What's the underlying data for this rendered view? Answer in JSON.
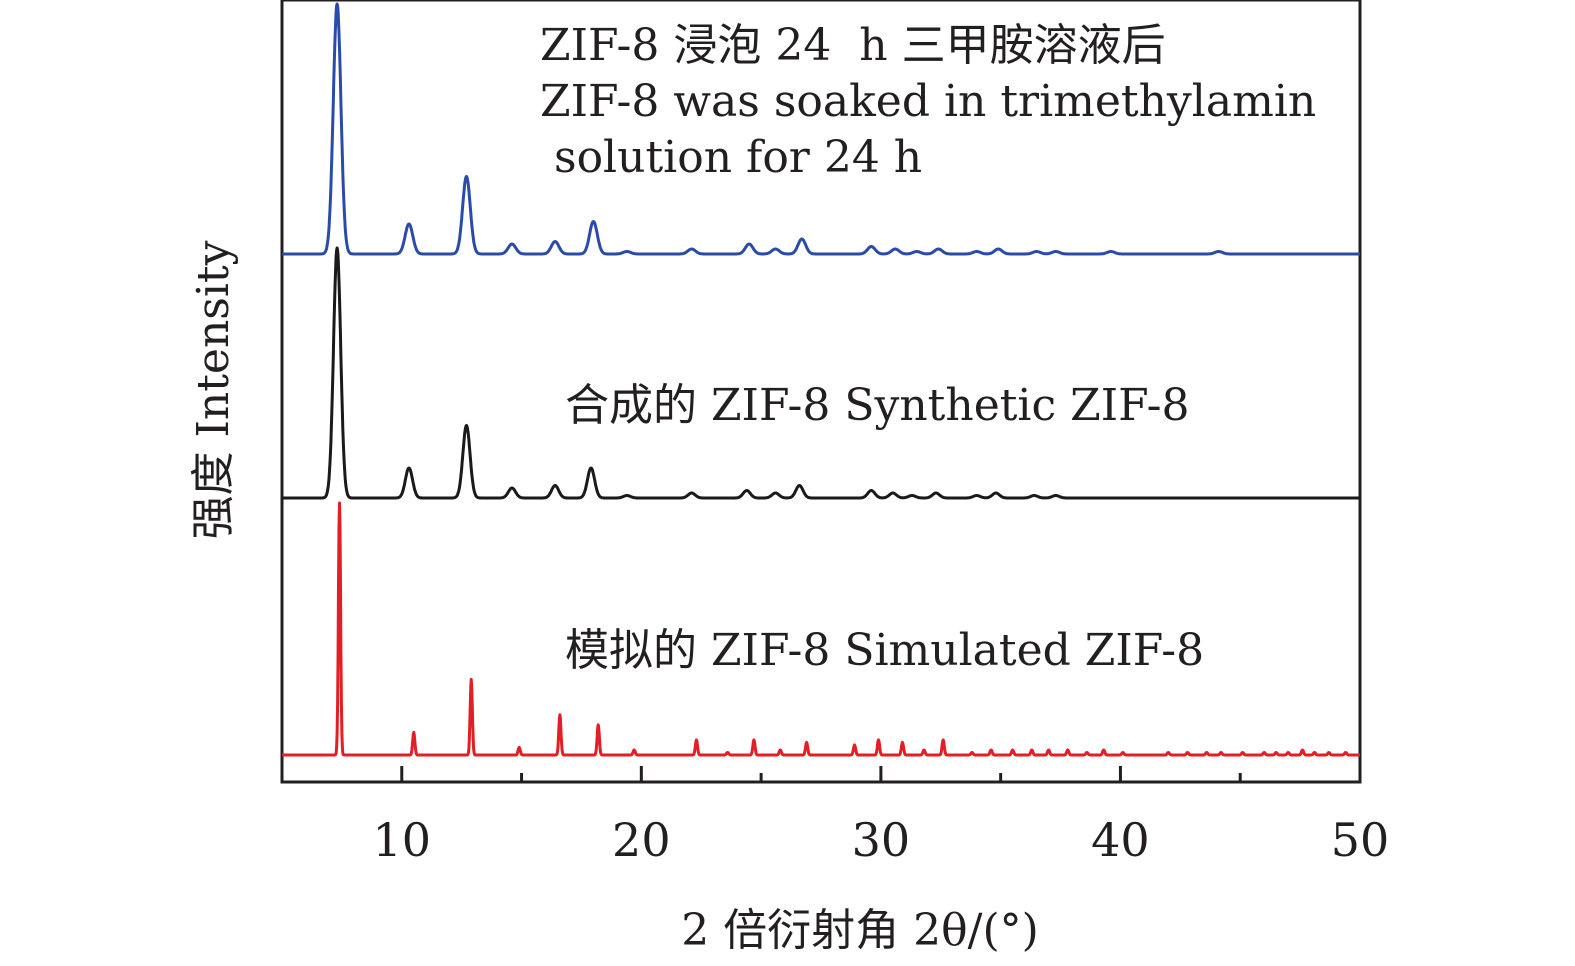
{
  "chart_data": {
    "type": "line",
    "xlabel": "2 倍衍射角 2θ/(°)",
    "ylabel": "强度 Intensity",
    "xlim": [
      5,
      50
    ],
    "xticks": [
      10,
      20,
      30,
      40,
      50
    ],
    "grid": false,
    "legend": "none",
    "y_units": "arbitrary, stacked with vertical offsets",
    "series": [
      {
        "name": "ZIF-8 浸泡 24 h 三甲胺溶液后 ZIF-8 was soaked in trimethylamin solution for 24 h",
        "label_lines": [
          "ZIF-8 浸泡 24  h 三甲胺溶液后",
          "ZIF-8 was soaked in trimethylamin",
          " solution for 24 h"
        ],
        "color": "#2b4ba8",
        "offset": 2,
        "peaks": [
          [
            7.3,
            1.0
          ],
          [
            10.3,
            0.12
          ],
          [
            12.7,
            0.31
          ],
          [
            14.6,
            0.04
          ],
          [
            16.4,
            0.05
          ],
          [
            18.0,
            0.13
          ],
          [
            19.4,
            0.01
          ],
          [
            22.1,
            0.02
          ],
          [
            24.5,
            0.04
          ],
          [
            25.6,
            0.02
          ],
          [
            26.7,
            0.06
          ],
          [
            29.6,
            0.03
          ],
          [
            30.6,
            0.02
          ],
          [
            31.5,
            0.01
          ],
          [
            32.4,
            0.02
          ],
          [
            34.0,
            0.01
          ],
          [
            34.9,
            0.02
          ],
          [
            36.5,
            0.01
          ],
          [
            37.3,
            0.01
          ],
          [
            39.6,
            0.01
          ],
          [
            44.1,
            0.01
          ]
        ]
      },
      {
        "name": "合成的 ZIF-8 Synthetic ZIF-8",
        "label_lines": [
          "合成的 ZIF-8 Synthetic ZIF-8"
        ],
        "color": "#1a1a1a",
        "offset": 1,
        "peaks": [
          [
            7.3,
            1.0
          ],
          [
            10.3,
            0.12
          ],
          [
            12.7,
            0.29
          ],
          [
            14.6,
            0.04
          ],
          [
            16.4,
            0.05
          ],
          [
            17.9,
            0.12
          ],
          [
            19.4,
            0.01
          ],
          [
            22.1,
            0.02
          ],
          [
            24.4,
            0.03
          ],
          [
            25.6,
            0.02
          ],
          [
            26.6,
            0.05
          ],
          [
            29.6,
            0.03
          ],
          [
            30.5,
            0.02
          ],
          [
            31.3,
            0.01
          ],
          [
            32.3,
            0.02
          ],
          [
            34.0,
            0.01
          ],
          [
            34.8,
            0.02
          ],
          [
            36.4,
            0.01
          ],
          [
            37.3,
            0.01
          ]
        ]
      },
      {
        "name": "模拟的 ZIF-8 Simulated ZIF-8",
        "label_lines": [
          "模拟的 ZIF-8 Simulated ZIF-8"
        ],
        "color": "#e31e24",
        "offset": 0,
        "peaks": [
          [
            7.4,
            1.0
          ],
          [
            10.5,
            0.09
          ],
          [
            12.9,
            0.3
          ],
          [
            14.9,
            0.03
          ],
          [
            16.6,
            0.16
          ],
          [
            18.2,
            0.12
          ],
          [
            19.7,
            0.02
          ],
          [
            22.3,
            0.06
          ],
          [
            23.6,
            0.01
          ],
          [
            24.7,
            0.06
          ],
          [
            25.8,
            0.02
          ],
          [
            26.9,
            0.05
          ],
          [
            28.9,
            0.04
          ],
          [
            29.9,
            0.06
          ],
          [
            30.9,
            0.05
          ],
          [
            31.8,
            0.02
          ],
          [
            32.6,
            0.06
          ],
          [
            33.8,
            0.01
          ],
          [
            34.6,
            0.02
          ],
          [
            35.5,
            0.02
          ],
          [
            36.3,
            0.02
          ],
          [
            37.0,
            0.02
          ],
          [
            37.8,
            0.02
          ],
          [
            38.6,
            0.01
          ],
          [
            39.3,
            0.02
          ],
          [
            40.1,
            0.01
          ],
          [
            42.0,
            0.01
          ],
          [
            42.8,
            0.01
          ],
          [
            43.6,
            0.01
          ],
          [
            44.2,
            0.01
          ],
          [
            45.1,
            0.01
          ],
          [
            46.0,
            0.01
          ],
          [
            46.5,
            0.01
          ],
          [
            47.0,
            0.01
          ],
          [
            47.6,
            0.02
          ],
          [
            48.1,
            0.01
          ],
          [
            48.7,
            0.01
          ],
          [
            49.4,
            0.01
          ]
        ]
      }
    ]
  }
}
